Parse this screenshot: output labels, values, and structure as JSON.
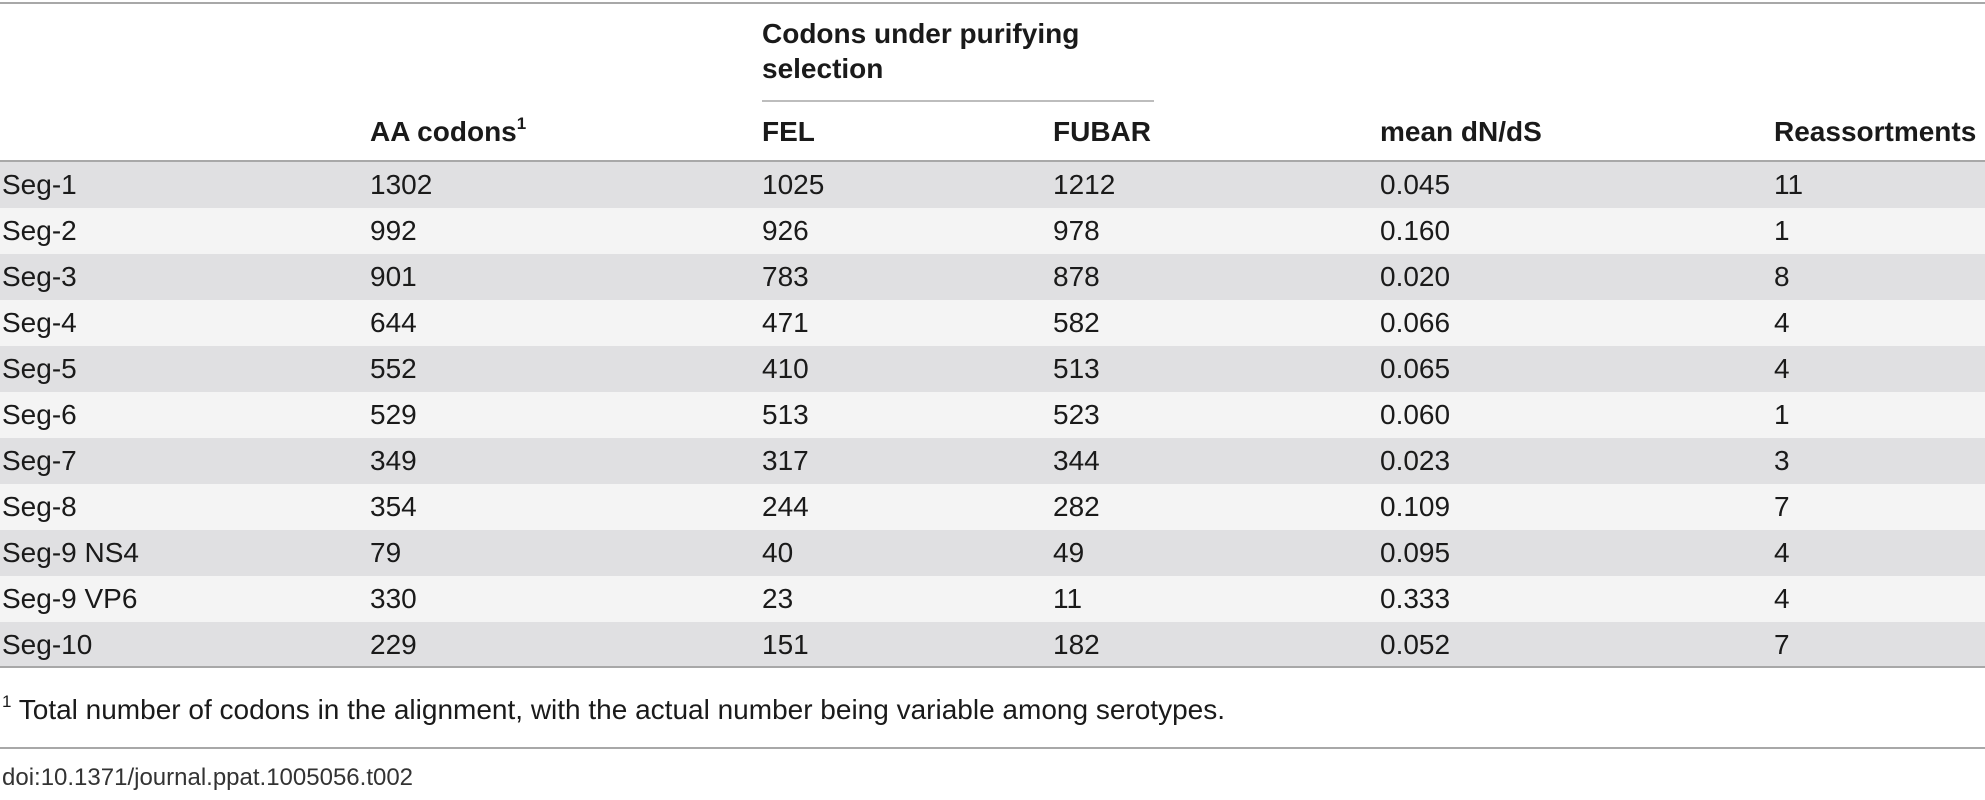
{
  "table": {
    "group_header": "Codons under purifying selection",
    "columns": {
      "segment": "",
      "aa_codons": "AA codons",
      "aa_codons_note": "1",
      "fel": "FEL",
      "fubar": "FUBAR",
      "mean_dnds": "mean dN/dS",
      "reassortments": "Reassortments"
    },
    "rows": [
      {
        "segment": "Seg-1",
        "aa_codons": "1302",
        "fel": "1025",
        "fubar": "1212",
        "mean_dnds": "0.045",
        "reassortments": "11"
      },
      {
        "segment": "Seg-2",
        "aa_codons": "992",
        "fel": "926",
        "fubar": "978",
        "mean_dnds": "0.160",
        "reassortments": "1"
      },
      {
        "segment": "Seg-3",
        "aa_codons": "901",
        "fel": "783",
        "fubar": "878",
        "mean_dnds": "0.020",
        "reassortments": "8"
      },
      {
        "segment": "Seg-4",
        "aa_codons": "644",
        "fel": "471",
        "fubar": "582",
        "mean_dnds": "0.066",
        "reassortments": "4"
      },
      {
        "segment": "Seg-5",
        "aa_codons": "552",
        "fel": "410",
        "fubar": "513",
        "mean_dnds": "0.065",
        "reassortments": "4"
      },
      {
        "segment": "Seg-6",
        "aa_codons": "529",
        "fel": "513",
        "fubar": "523",
        "mean_dnds": "0.060",
        "reassortments": "1"
      },
      {
        "segment": "Seg-7",
        "aa_codons": "349",
        "fel": "317",
        "fubar": "344",
        "mean_dnds": "0.023",
        "reassortments": "3"
      },
      {
        "segment": "Seg-8",
        "aa_codons": "354",
        "fel": "244",
        "fubar": "282",
        "mean_dnds": "0.109",
        "reassortments": "7"
      },
      {
        "segment": "Seg-9 NS4",
        "aa_codons": "79",
        "fel": "40",
        "fubar": "49",
        "mean_dnds": "0.095",
        "reassortments": "4"
      },
      {
        "segment": "Seg-9 VP6",
        "aa_codons": "330",
        "fel": "23",
        "fubar": "11",
        "mean_dnds": "0.333",
        "reassortments": "4"
      },
      {
        "segment": "Seg-10",
        "aa_codons": "229",
        "fel": "151",
        "fubar": "182",
        "mean_dnds": "0.052",
        "reassortments": "7"
      }
    ],
    "footnote_marker": "1",
    "footnote_text": " Total number of codons in the alignment, with the actual number being variable among serotypes.",
    "doi": "doi:10.1371/journal.ppat.1005056.t002"
  },
  "colors": {
    "row_shade": "#e0e0e2",
    "row_plain": "#f4f4f4",
    "rule": "#a8a8a8"
  }
}
